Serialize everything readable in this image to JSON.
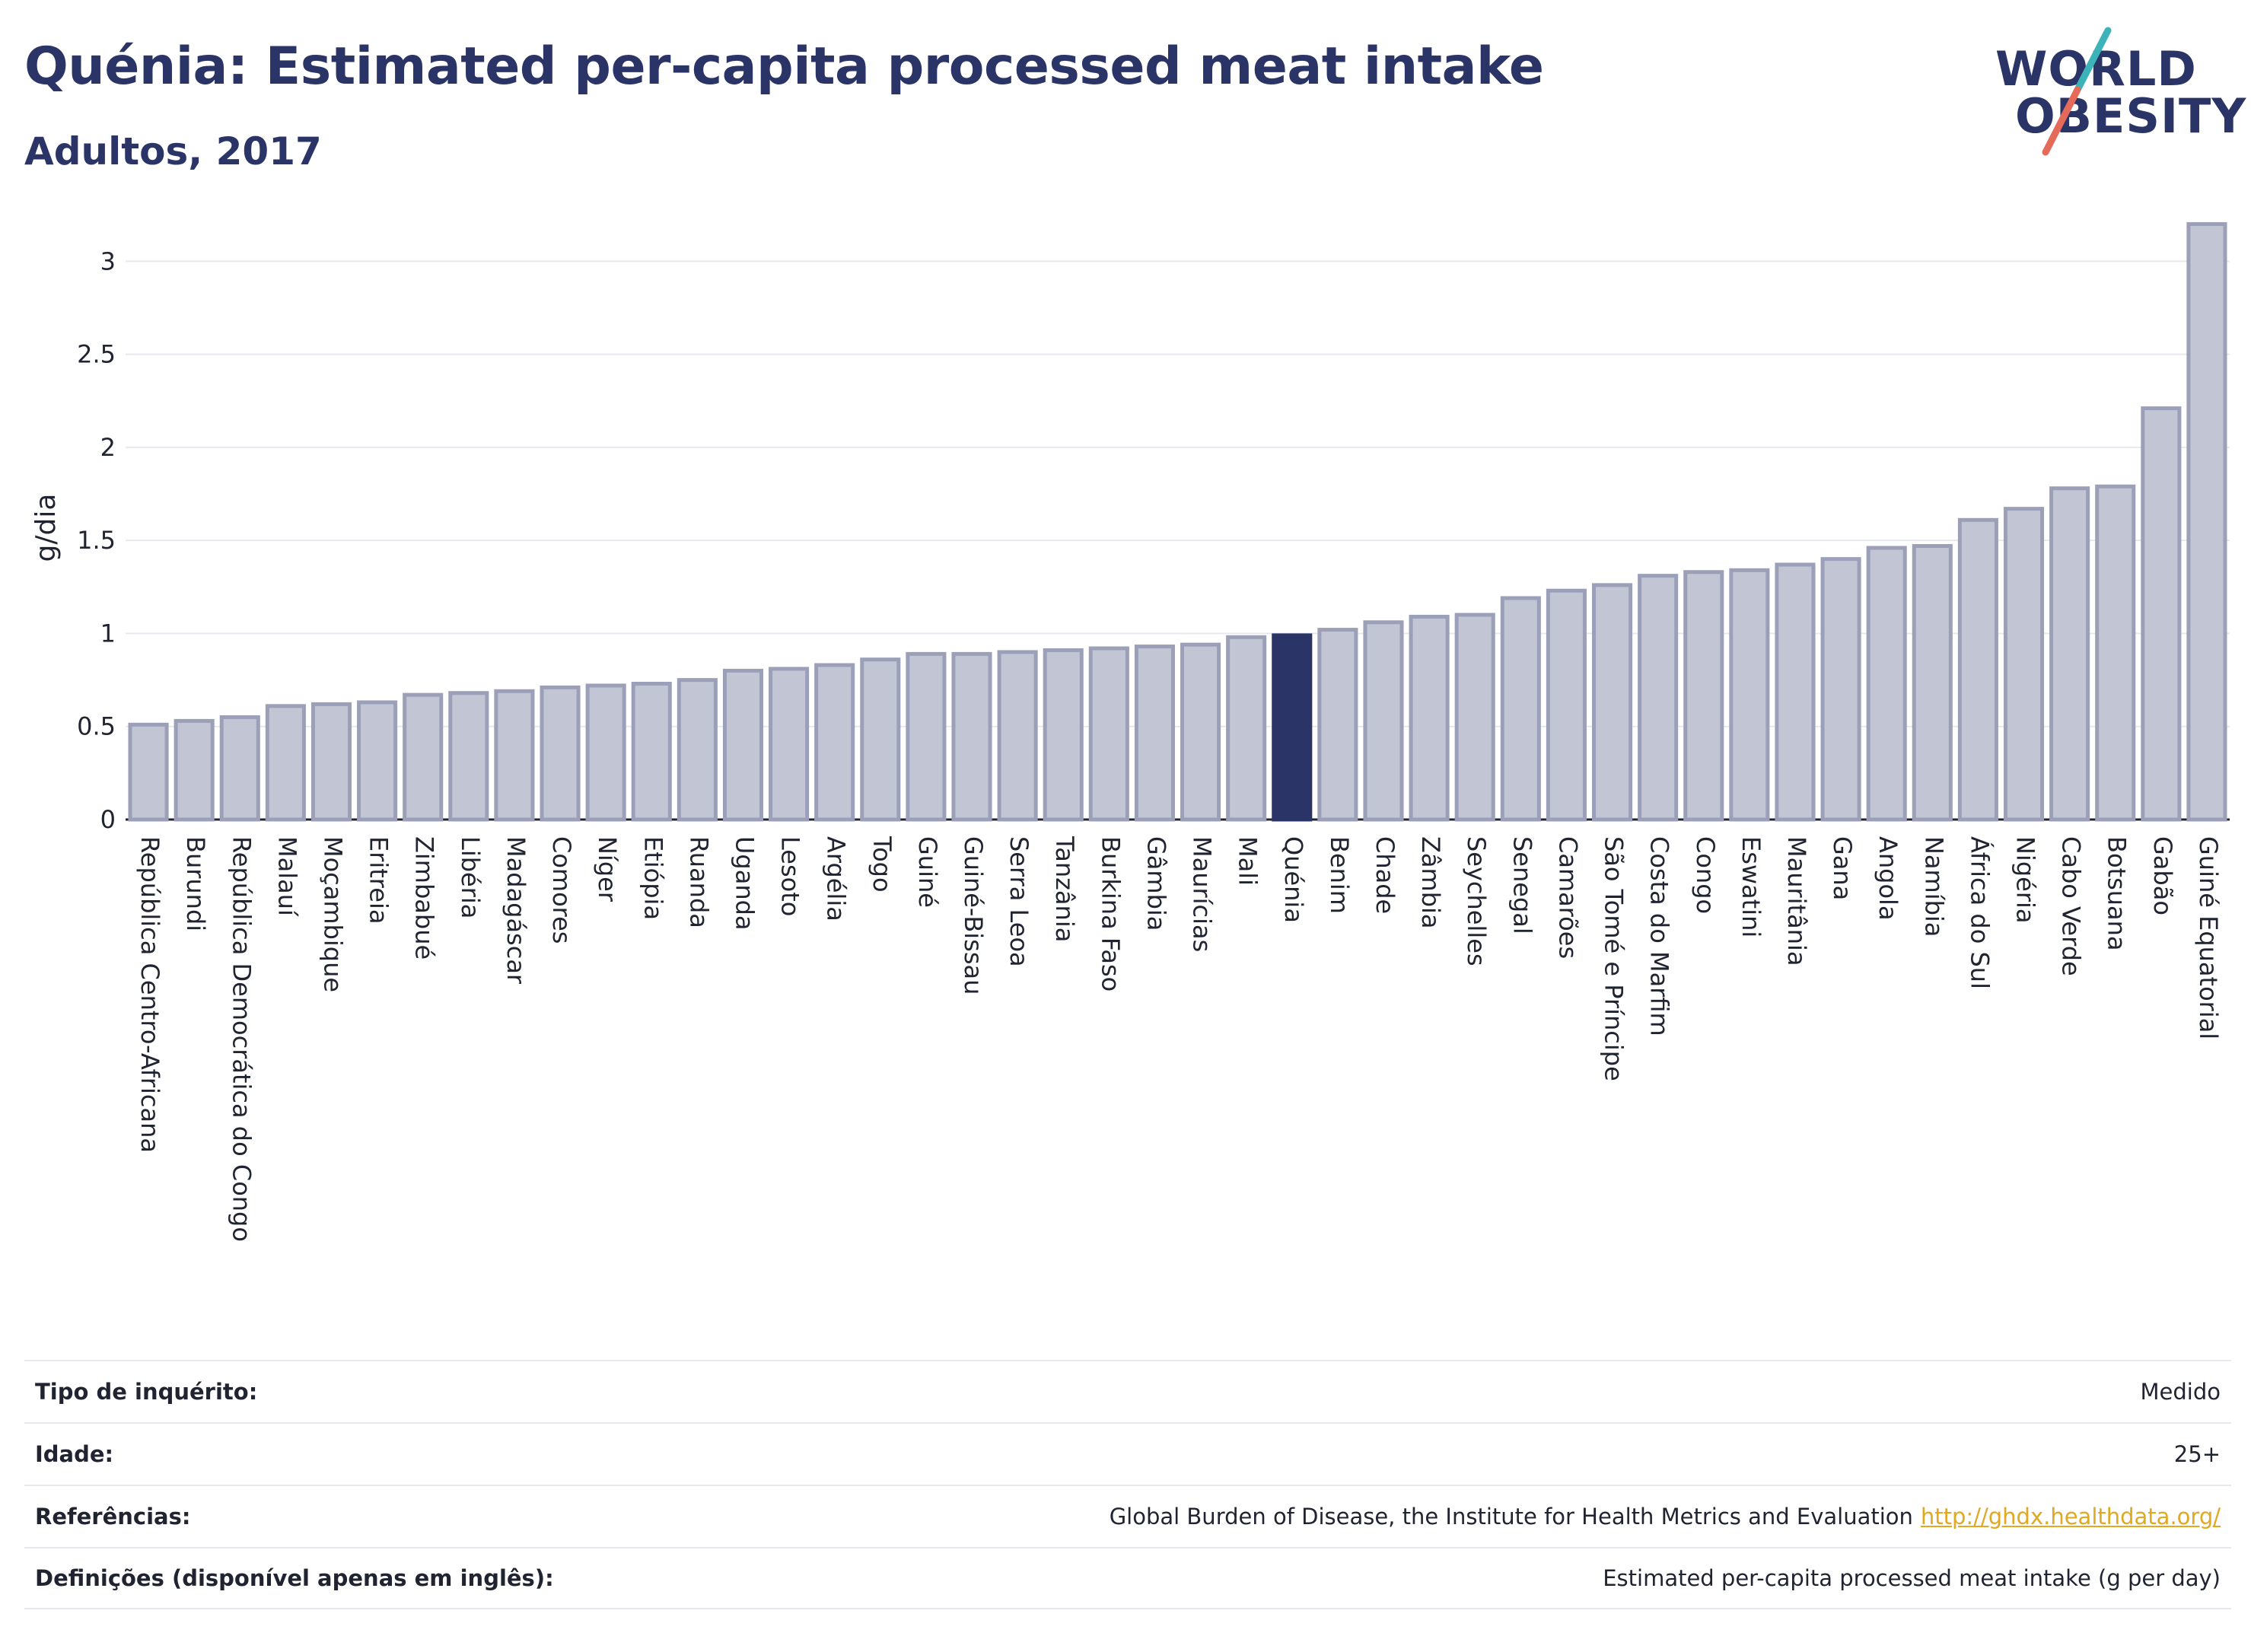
{
  "header": {
    "title": "Quénia: Estimated per-capita processed meat intake",
    "subtitle": "Adultos, 2017"
  },
  "logo": {
    "line1": "WORLD",
    "line2": "OBESITY",
    "color_text": "#2b3466",
    "color_slash_top": "#3bb3b8",
    "color_slash_bottom": "#e56a59"
  },
  "colors": {
    "bar": "#c2c5d3",
    "bar_stroke": "#9ba0b8",
    "highlight": "#2b3466",
    "grid": "#e6e8ee",
    "link": "#e0a823"
  },
  "chart_data": {
    "type": "bar",
    "ylabel": "g/dia",
    "ylim": [
      0,
      3.3
    ],
    "yticks": [
      0,
      0.5,
      1,
      1.5,
      2,
      2.5,
      3
    ],
    "ytick_labels": [
      "0",
      "0.5",
      "1",
      "1.5",
      "2",
      "2.5",
      "3"
    ],
    "grid": true,
    "highlight": "Quénia",
    "categories": [
      "República Centro-Africana",
      "Burundi",
      "República Democrática do Congo",
      "Malauí",
      "Moçambique",
      "Eritreia",
      "Zimbabué",
      "Libéria",
      "Madagáscar",
      "Comores",
      "Níger",
      "Etiópia",
      "Ruanda",
      "Uganda",
      "Lesoto",
      "Argélia",
      "Togo",
      "Guiné",
      "Guiné-Bissau",
      "Serra Leoa",
      "Tanzânia",
      "Burkina Faso",
      "Gâmbia",
      "Maurícias",
      "Mali",
      "Quénia",
      "Benim",
      "Chade",
      "Zâmbia",
      "Seychelles",
      "Senegal",
      "Camarões",
      "São Tomé e Príncipe",
      "Costa do Marfim",
      "Congo",
      "Eswatini",
      "Mauritânia",
      "Gana",
      "Angola",
      "Namíbia",
      "África do Sul",
      "Nigéria",
      "Cabo Verde",
      "Botsuana",
      "Gabão",
      "Guiné Equatorial"
    ],
    "values": [
      0.51,
      0.53,
      0.55,
      0.61,
      0.62,
      0.63,
      0.67,
      0.68,
      0.69,
      0.71,
      0.72,
      0.73,
      0.75,
      0.8,
      0.81,
      0.83,
      0.86,
      0.89,
      0.89,
      0.9,
      0.91,
      0.92,
      0.93,
      0.94,
      0.98,
      0.99,
      1.02,
      1.06,
      1.09,
      1.1,
      1.19,
      1.23,
      1.26,
      1.31,
      1.33,
      1.34,
      1.37,
      1.4,
      1.46,
      1.47,
      1.61,
      1.67,
      1.78,
      1.79,
      2.21,
      3.2
    ]
  },
  "info": {
    "survey_label": "Tipo de inquérito:",
    "survey_value": "Medido",
    "age_label": "Idade:",
    "age_value": "25+",
    "ref_label": "Referências:",
    "ref_value": "Global Burden of Disease, the Institute for Health Metrics and Evaluation",
    "ref_link": "http://ghdx.healthdata.org/",
    "def_label": "Definições (disponível apenas em inglês):",
    "def_value": "Estimated per-capita processed meat intake (g per day)"
  }
}
